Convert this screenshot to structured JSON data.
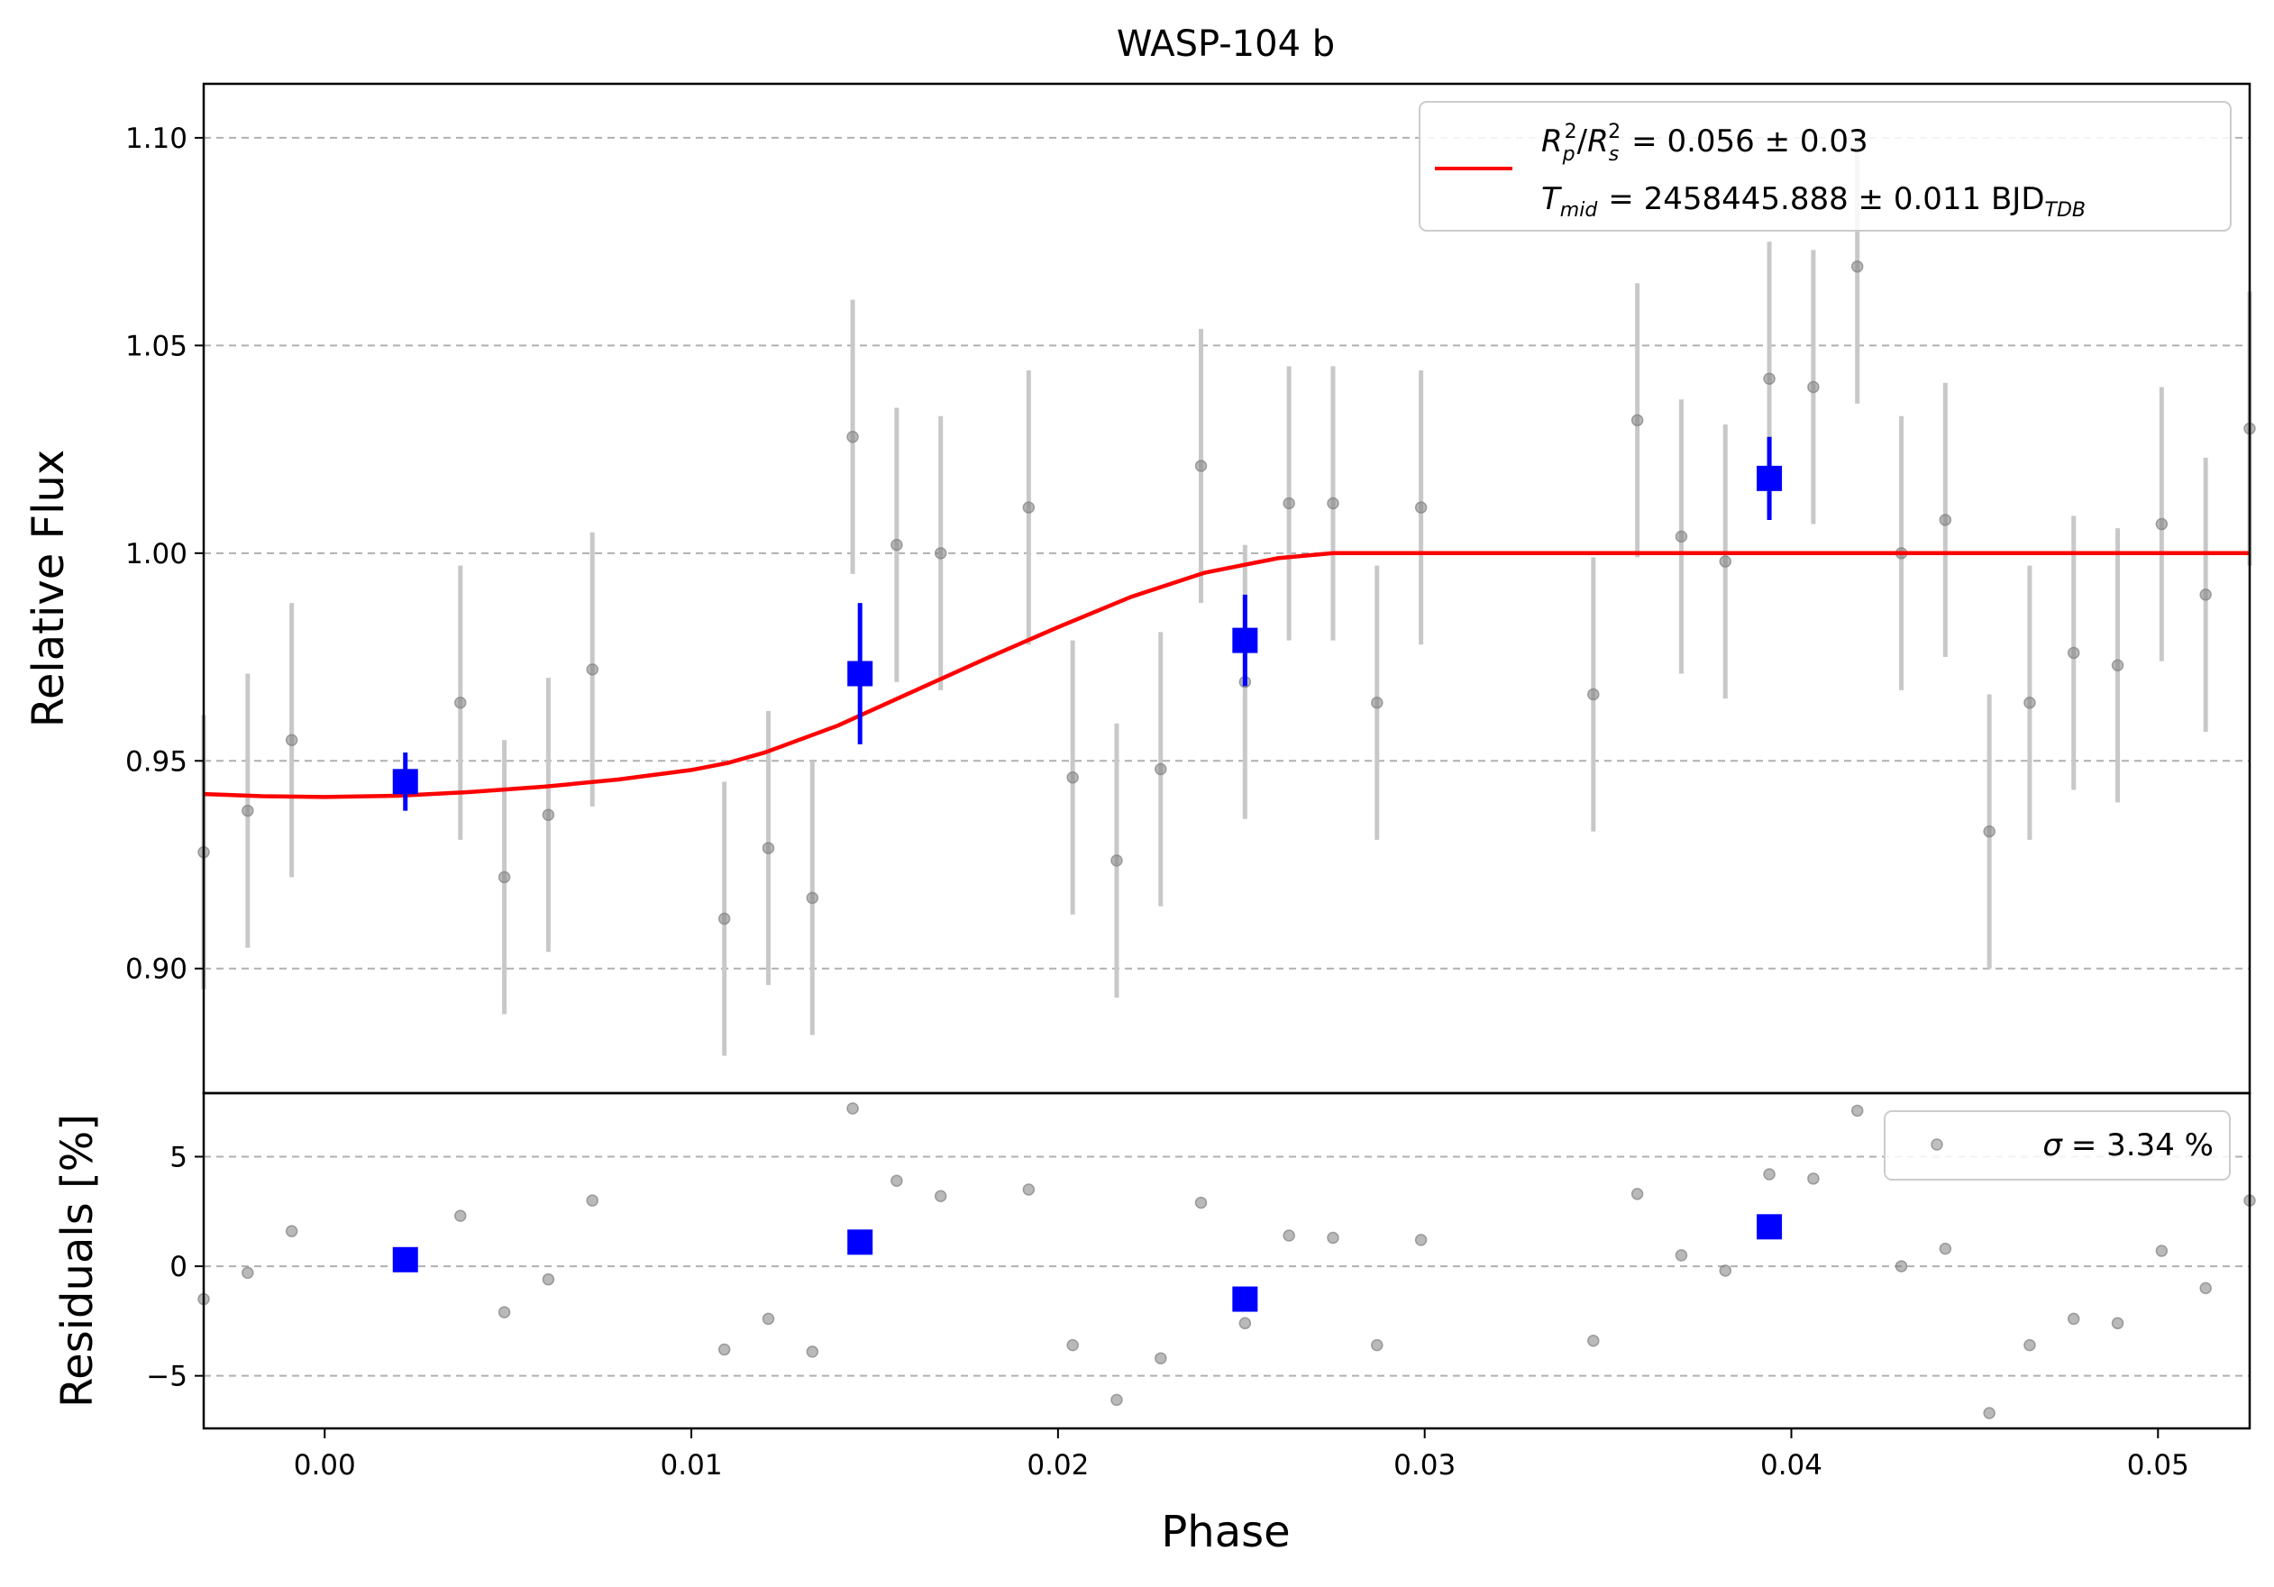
{
  "chart_data": {
    "type": "scatter",
    "title": "WASP-104 b",
    "xlabel": "Phase",
    "xlim": [
      -0.0033,
      0.0525
    ],
    "x_ticks": [
      "0.00",
      "0.01",
      "0.02",
      "0.03",
      "0.04",
      "0.05"
    ],
    "x_tick_values": [
      0.0,
      0.01,
      0.02,
      0.03,
      0.04,
      0.05
    ],
    "grid": "horizontal dashed",
    "panels": {
      "flux": {
        "ylabel": "Relative Flux",
        "ylim": [
          0.87,
          1.113
        ],
        "y_ticks": [
          "0.90",
          "0.95",
          "1.00",
          "1.05",
          "1.10"
        ],
        "y_tick_values": [
          0.9,
          0.95,
          1.0,
          1.05,
          1.1
        ],
        "legend": {
          "placement": "top-right",
          "line1": "= 0.056 ± 0.03",
          "line2": "= 2458445.888 ± 0.011 BJD",
          "rp_sym": "R",
          "rp_sub": "p",
          "rp_sup": "2",
          "rs_sym": "R",
          "rs_sub": "s",
          "rs_sup": "2",
          "t_sym": "T",
          "t_sub": "mid",
          "bjd_sub": "TDB"
        },
        "raw_points": [
          {
            "x": -0.0033,
            "y": 0.928,
            "err": 0.033
          },
          {
            "x": -0.0021,
            "y": 0.938,
            "err": 0.033
          },
          {
            "x": -0.0009,
            "y": 0.955,
            "err": 0.033
          },
          {
            "x": 0.0037,
            "y": 0.964,
            "err": 0.033
          },
          {
            "x": 0.0049,
            "y": 0.922,
            "err": 0.033
          },
          {
            "x": 0.0061,
            "y": 0.937,
            "err": 0.033
          },
          {
            "x": 0.0073,
            "y": 0.972,
            "err": 0.033
          },
          {
            "x": 0.0109,
            "y": 0.912,
            "err": 0.033
          },
          {
            "x": 0.0121,
            "y": 0.929,
            "err": 0.033
          },
          {
            "x": 0.0133,
            "y": 0.917,
            "err": 0.033
          },
          {
            "x": 0.0144,
            "y": 1.028,
            "err": 0.033
          },
          {
            "x": 0.0156,
            "y": 1.002,
            "err": 0.033
          },
          {
            "x": 0.0168,
            "y": 1.0,
            "err": 0.033
          },
          {
            "x": 0.0192,
            "y": 1.011,
            "err": 0.033
          },
          {
            "x": 0.0204,
            "y": 0.946,
            "err": 0.033
          },
          {
            "x": 0.0216,
            "y": 0.926,
            "err": 0.033
          },
          {
            "x": 0.0228,
            "y": 0.948,
            "err": 0.033
          },
          {
            "x": 0.0239,
            "y": 1.021,
            "err": 0.033
          },
          {
            "x": 0.0251,
            "y": 0.969,
            "err": 0.033
          },
          {
            "x": 0.0263,
            "y": 1.012,
            "err": 0.033
          },
          {
            "x": 0.0275,
            "y": 1.012,
            "err": 0.033
          },
          {
            "x": 0.0287,
            "y": 0.964,
            "err": 0.033
          },
          {
            "x": 0.0299,
            "y": 1.011,
            "err": 0.033
          },
          {
            "x": 0.0346,
            "y": 0.966,
            "err": 0.033
          },
          {
            "x": 0.0358,
            "y": 1.032,
            "err": 0.033
          },
          {
            "x": 0.037,
            "y": 1.004,
            "err": 0.033
          },
          {
            "x": 0.0382,
            "y": 0.998,
            "err": 0.033
          },
          {
            "x": 0.0394,
            "y": 1.042,
            "err": 0.033
          },
          {
            "x": 0.0406,
            "y": 1.04,
            "err": 0.033
          },
          {
            "x": 0.0418,
            "y": 1.069,
            "err": 0.033
          },
          {
            "x": 0.043,
            "y": 1.0,
            "err": 0.033
          },
          {
            "x": 0.0442,
            "y": 1.008,
            "err": 0.033
          },
          {
            "x": 0.0454,
            "y": 0.933,
            "err": 0.033
          },
          {
            "x": 0.0465,
            "y": 0.964,
            "err": 0.033
          },
          {
            "x": 0.0477,
            "y": 0.976,
            "err": 0.033
          },
          {
            "x": 0.0489,
            "y": 0.973,
            "err": 0.033
          },
          {
            "x": 0.0501,
            "y": 1.007,
            "err": 0.033
          },
          {
            "x": 0.0513,
            "y": 0.99,
            "err": 0.033
          },
          {
            "x": 0.0525,
            "y": 1.03,
            "err": 0.033
          }
        ],
        "binned_points": [
          {
            "x": 0.0022,
            "y": 0.945,
            "err": 0.007
          },
          {
            "x": 0.0146,
            "y": 0.971,
            "err": 0.017
          },
          {
            "x": 0.0251,
            "y": 0.979,
            "err": 0.011
          },
          {
            "x": 0.0394,
            "y": 1.018,
            "err": 0.01
          }
        ],
        "model": {
          "color": "#ff0000",
          "x": [
            -0.0033,
            -0.0017,
            0.0,
            0.002,
            0.004,
            0.006,
            0.008,
            0.01,
            0.011,
            0.012,
            0.014,
            0.016,
            0.018,
            0.02,
            0.022,
            0.024,
            0.026,
            0.0275,
            0.0285,
            0.035,
            0.045,
            0.0525
          ],
          "y": [
            0.942,
            0.9415,
            0.9413,
            0.9416,
            0.9425,
            0.9438,
            0.9455,
            0.9478,
            0.9495,
            0.952,
            0.9585,
            0.9665,
            0.9745,
            0.9822,
            0.9895,
            0.9953,
            0.9988,
            1.0,
            1.0,
            1.0,
            1.0,
            1.0
          ]
        }
      },
      "residuals": {
        "ylabel": "Residuals [%]",
        "ylim": [
          -7.4,
          7.9
        ],
        "y_ticks": [
          "5",
          "0",
          "−5"
        ],
        "y_tick_values": [
          5,
          0,
          -5
        ],
        "legend": {
          "placement": "top-right",
          "text": "= 3.34 %",
          "sigma": "σ"
        },
        "raw_points": [
          {
            "x": -0.0033,
            "y": -1.5
          },
          {
            "x": -0.0021,
            "y": -0.3
          },
          {
            "x": -0.0009,
            "y": 1.6
          },
          {
            "x": 0.0037,
            "y": 2.3
          },
          {
            "x": 0.0049,
            "y": -2.1
          },
          {
            "x": 0.0061,
            "y": -0.6
          },
          {
            "x": 0.0073,
            "y": 3.0
          },
          {
            "x": 0.0109,
            "y": -3.8
          },
          {
            "x": 0.0121,
            "y": -2.4
          },
          {
            "x": 0.0133,
            "y": -3.9
          },
          {
            "x": 0.0144,
            "y": 7.2
          },
          {
            "x": 0.0156,
            "y": 3.9
          },
          {
            "x": 0.0168,
            "y": 3.2
          },
          {
            "x": 0.0192,
            "y": 3.5
          },
          {
            "x": 0.0204,
            "y": -3.6
          },
          {
            "x": 0.0216,
            "y": -6.1
          },
          {
            "x": 0.0228,
            "y": -4.2
          },
          {
            "x": 0.0239,
            "y": 2.9
          },
          {
            "x": 0.0251,
            "y": -2.6
          },
          {
            "x": 0.0263,
            "y": 1.4
          },
          {
            "x": 0.0275,
            "y": 1.3
          },
          {
            "x": 0.0287,
            "y": -3.6
          },
          {
            "x": 0.0299,
            "y": 1.2
          },
          {
            "x": 0.0346,
            "y": -3.4
          },
          {
            "x": 0.0358,
            "y": 3.3
          },
          {
            "x": 0.037,
            "y": 0.5
          },
          {
            "x": 0.0382,
            "y": -0.2
          },
          {
            "x": 0.0394,
            "y": 4.2
          },
          {
            "x": 0.0406,
            "y": 4.0
          },
          {
            "x": 0.0418,
            "y": 7.1
          },
          {
            "x": 0.043,
            "y": 0.0
          },
          {
            "x": 0.0442,
            "y": 0.8
          },
          {
            "x": 0.0454,
            "y": -6.7
          },
          {
            "x": 0.0465,
            "y": -3.6
          },
          {
            "x": 0.0477,
            "y": -2.4
          },
          {
            "x": 0.0489,
            "y": -2.6
          },
          {
            "x": 0.0501,
            "y": 0.7
          },
          {
            "x": 0.0513,
            "y": -1.0
          },
          {
            "x": 0.0525,
            "y": 3.0
          }
        ],
        "binned_points": [
          {
            "x": 0.0022,
            "y": 0.3
          },
          {
            "x": 0.0146,
            "y": 1.1
          },
          {
            "x": 0.0251,
            "y": -1.5
          },
          {
            "x": 0.0394,
            "y": 1.8
          }
        ]
      }
    },
    "colors": {
      "raw": "#808080",
      "raw_err": "#c8c8c8",
      "binned": "#0000ff",
      "grid": "#b0b0b0"
    }
  }
}
